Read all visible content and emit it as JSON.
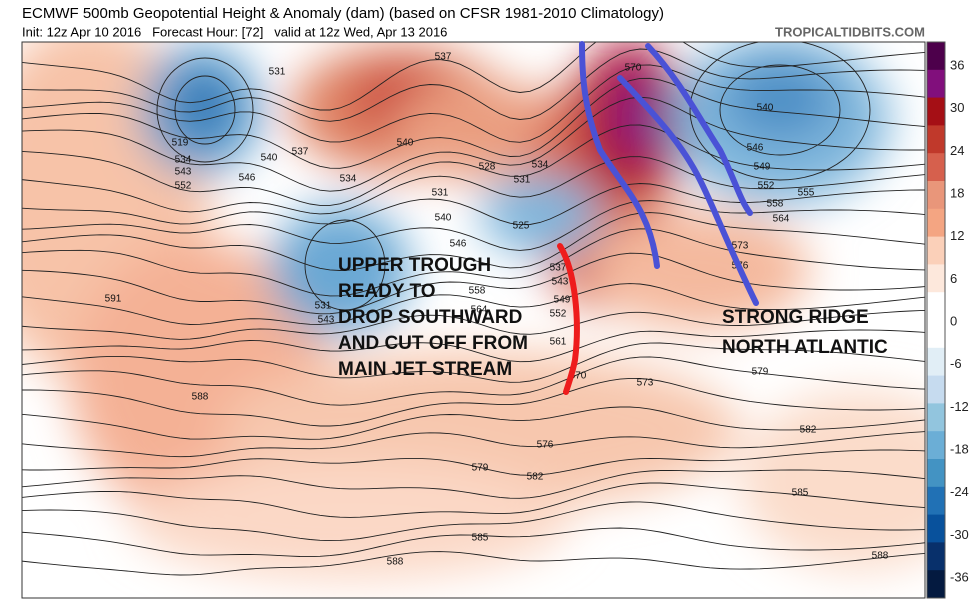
{
  "header": {
    "title": "ECMWF 500mb Geopotential Height & Anomaly (dam) (based on CFSR 1981-2010 Climatology)",
    "subtitle": "Init: 12z Apr 10 2016   Forecast Hour: [72]   valid at 12z Wed, Apr 13 2016",
    "watermark": "TROPICALTIDBITS.COM"
  },
  "colorbar": {
    "labels": [
      36,
      30,
      24,
      18,
      12,
      6,
      0,
      -6,
      -12,
      -18,
      -24,
      -30,
      -36
    ]
  },
  "annotations": [
    {
      "lines": [
        "UPPER TROUGH",
        "READY TO",
        "DROP SOUTHWARD",
        "AND CUT OFF FROM",
        "MAIN JET STREAM"
      ]
    },
    {
      "lines": [
        "STRONG RIDGE",
        "NORTH ATLANTIC"
      ]
    }
  ],
  "contour_labels": [
    531,
    537,
    540,
    537,
    534,
    519,
    534,
    543,
    552,
    540,
    546,
    531,
    540,
    525,
    546,
    537,
    543,
    549,
    552,
    558,
    564,
    561,
    570,
    573,
    573,
    576,
    579,
    582,
    585,
    588,
    591,
    588,
    576,
    579,
    582,
    585,
    588,
    531,
    543,
    540,
    546,
    549,
    552,
    555,
    558,
    564,
    570,
    528,
    534,
    531
  ]
}
